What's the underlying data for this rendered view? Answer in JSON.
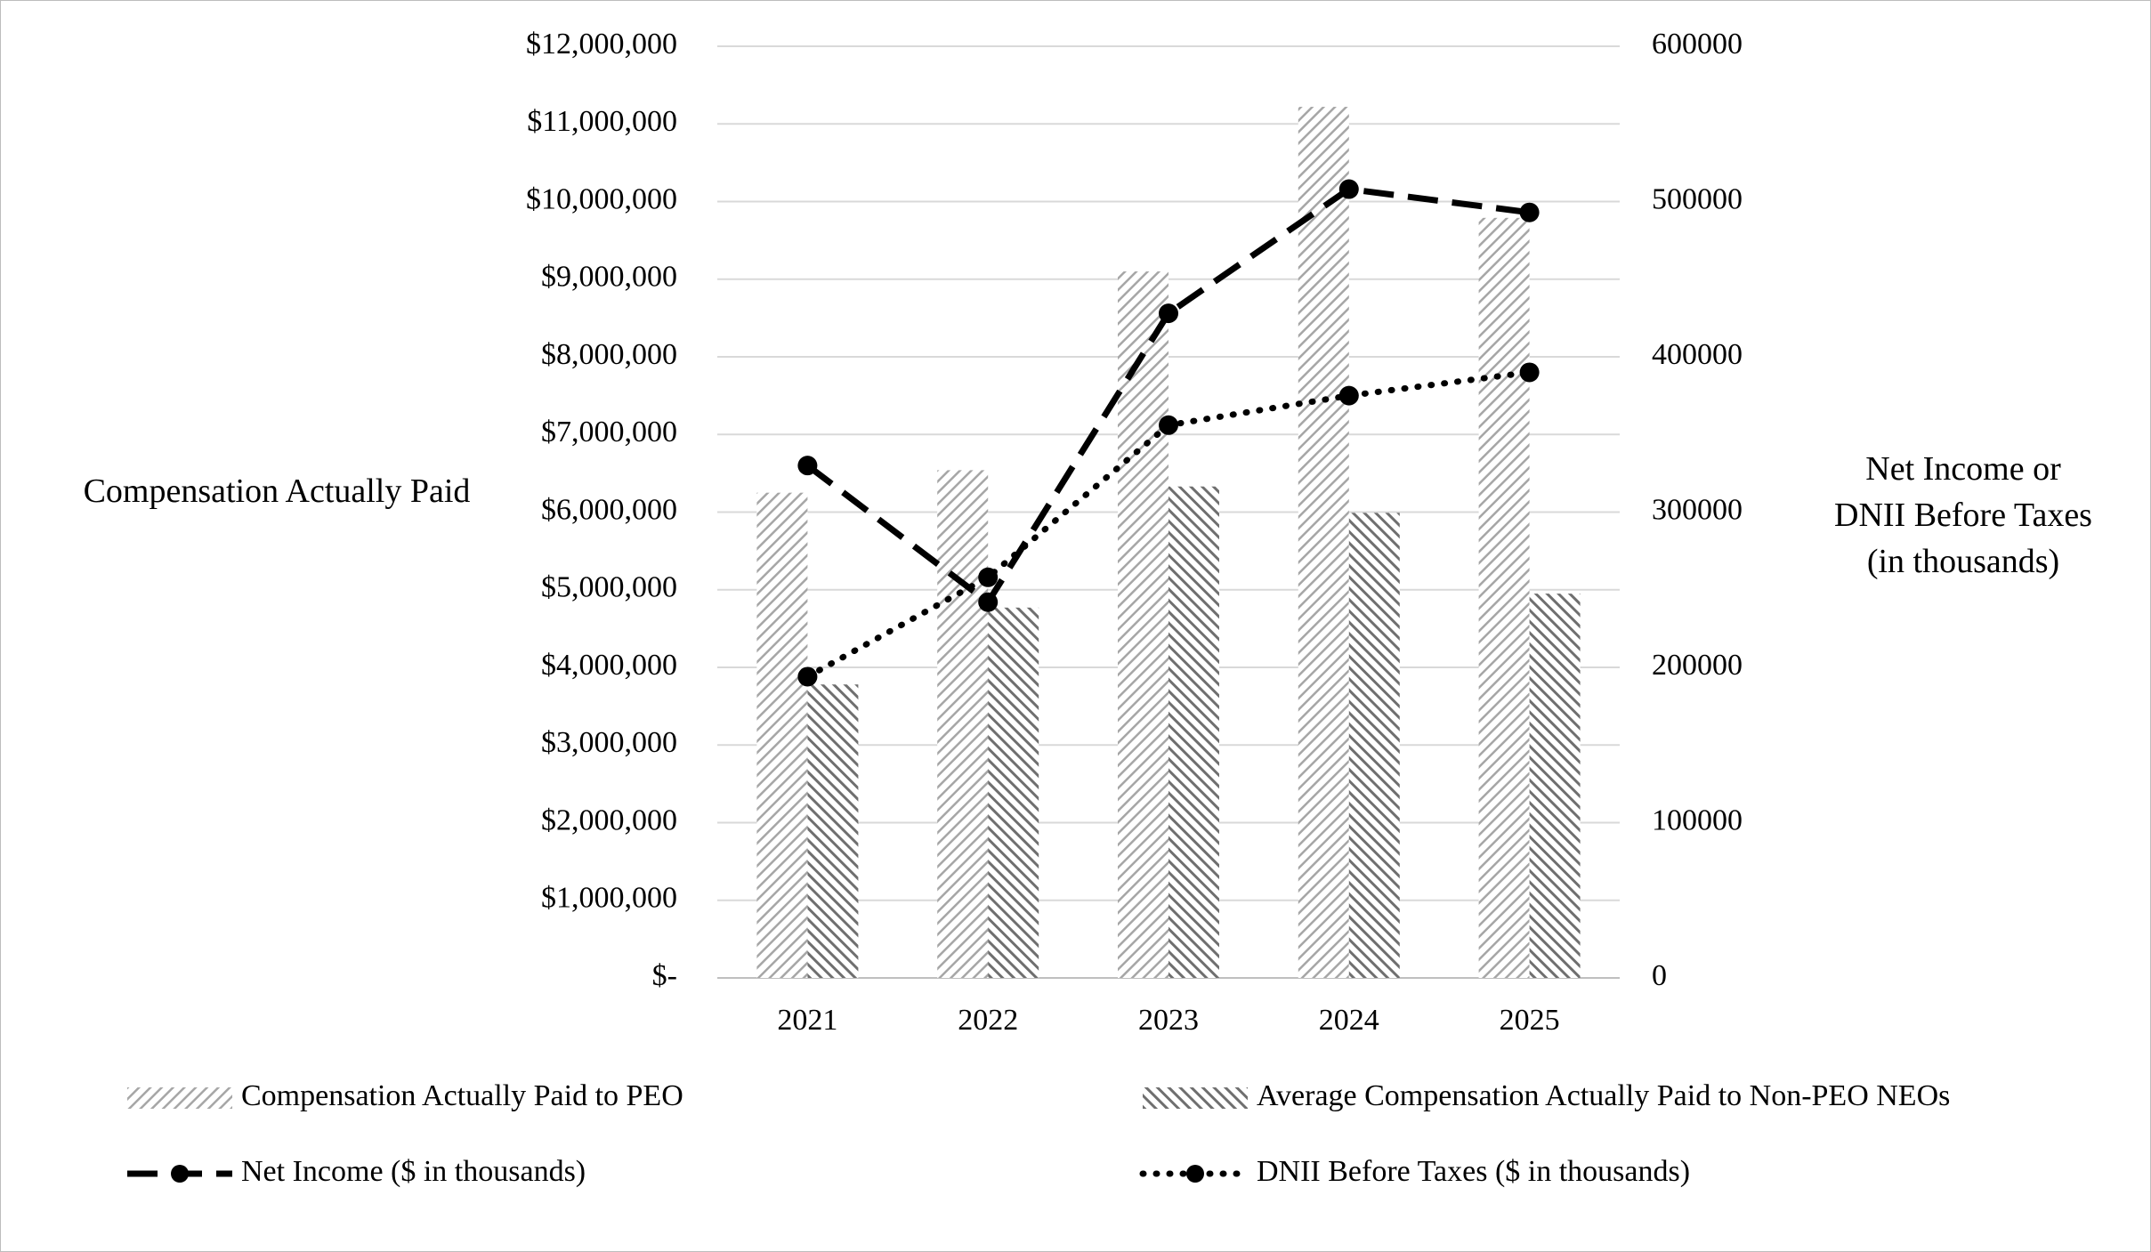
{
  "chart_data": {
    "type": "bar",
    "categories": [
      "2021",
      "2022",
      "2023",
      "2024",
      "2025"
    ],
    "y_label": "Compensation Actually Paid",
    "y2_label": "Net Income or DNII Before Taxes (in thousands)",
    "ylim": [
      0,
      12000000
    ],
    "yticks": [
      {
        "value": 0,
        "label": "$-"
      },
      {
        "value": 1000000,
        "label": "$1,000,000"
      },
      {
        "value": 2000000,
        "label": "$2,000,000"
      },
      {
        "value": 3000000,
        "label": "$3,000,000"
      },
      {
        "value": 4000000,
        "label": "$4,000,000"
      },
      {
        "value": 5000000,
        "label": "$5,000,000"
      },
      {
        "value": 6000000,
        "label": "$6,000,000"
      },
      {
        "value": 7000000,
        "label": "$7,000,000"
      },
      {
        "value": 8000000,
        "label": "$8,000,000"
      },
      {
        "value": 9000000,
        "label": "$9,000,000"
      },
      {
        "value": 10000000,
        "label": "$10,000,000"
      },
      {
        "value": 11000000,
        "label": "$11,000,000"
      },
      {
        "value": 12000000,
        "label": "$12,000,000"
      }
    ],
    "y2lim": [
      0,
      600000
    ],
    "y2ticks": [
      0,
      100000,
      200000,
      300000,
      400000,
      500000,
      600000
    ],
    "grid": true,
    "legend": "bottom",
    "series": [
      {
        "name": "Compensation Actually Paid to PEO",
        "type": "bar",
        "pattern": "up",
        "color": "#a6a6a6",
        "values": [
          6250000,
          6540000,
          9100000,
          11220000,
          9790000
        ]
      },
      {
        "name": "Average Compensation Actually Paid to Non-PEO NEOs",
        "type": "bar",
        "pattern": "down",
        "color": "#6f6f6f",
        "values": [
          3780000,
          4770000,
          6330000,
          5990000,
          4950000
        ]
      },
      {
        "name": "Net Income ($ in thousands)",
        "type": "line",
        "dash": "dashed",
        "axis": "y2",
        "color": "#000000",
        "values": [
          330000,
          242000,
          428000,
          508000,
          493000
        ]
      },
      {
        "name": "DNII Before Taxes ($ in thousands)",
        "type": "line",
        "dash": "dotted",
        "axis": "y2",
        "color": "#000000",
        "values": [
          194000,
          258000,
          356000,
          375000,
          390000
        ]
      }
    ]
  }
}
